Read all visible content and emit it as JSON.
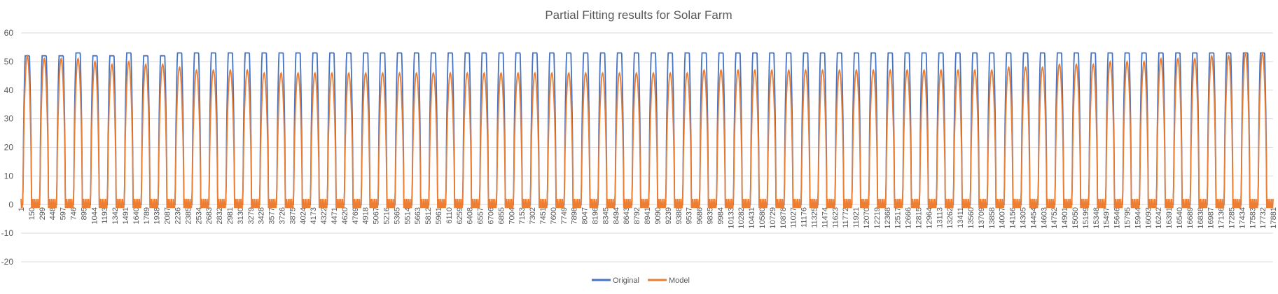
{
  "chart_data": {
    "type": "line",
    "title": "Partial Fitting results for Solar Farm",
    "xlabel": "",
    "ylabel": "",
    "ylim": [
      -20,
      60
    ],
    "yticks": [
      -20,
      -10,
      0,
      10,
      20,
      30,
      40,
      50,
      60
    ],
    "x_range": [
      1,
      17880
    ],
    "grid": true,
    "legend_position": "bottom",
    "x_tick_labels": [
      "1",
      "150",
      "299",
      "448",
      "597",
      "746",
      "895",
      "1044",
      "1193",
      "1342",
      "1491",
      "1640",
      "1789",
      "1938",
      "2087",
      "2236",
      "2385",
      "2534",
      "2683",
      "2832",
      "2981",
      "3130",
      "3279",
      "3428",
      "3577",
      "3726",
      "3875",
      "4024",
      "4173",
      "4322",
      "4471",
      "4620",
      "4769",
      "4918",
      "5067",
      "5216",
      "5365",
      "5514",
      "5663",
      "5812",
      "5961",
      "6110",
      "6259",
      "6408",
      "6557",
      "6706",
      "6855",
      "7004",
      "7153",
      "7302",
      "7451",
      "7600",
      "7749",
      "7898",
      "8047",
      "8196",
      "8345",
      "8494",
      "8643",
      "8792",
      "8941",
      "9090",
      "9239",
      "9388",
      "9537",
      "9686",
      "9835",
      "9984",
      "10133",
      "10282",
      "10431",
      "10580",
      "10729",
      "10878",
      "11027",
      "11176",
      "11325",
      "11474",
      "11623",
      "11772",
      "11921",
      "12070",
      "12219",
      "12368",
      "12517",
      "12666",
      "12815",
      "12964",
      "13113",
      "13262",
      "13411",
      "13560",
      "13709",
      "13858",
      "14007",
      "14156",
      "14305",
      "14454",
      "14603",
      "14752",
      "14901",
      "15050",
      "15199",
      "15348",
      "15497",
      "15646",
      "15795",
      "15944",
      "16093",
      "16242",
      "16391",
      "16540",
      "16689",
      "16838",
      "16987",
      "17136",
      "17285",
      "17434",
      "17583",
      "17732",
      "17881"
    ],
    "series": [
      {
        "name": "Original",
        "color": "#4472c4",
        "daily_peaks": [
          52,
          52,
          52,
          53,
          52,
          52,
          53,
          52,
          52,
          53,
          53,
          53,
          53,
          53,
          53,
          53,
          53,
          53,
          53,
          53,
          53,
          53,
          53,
          53,
          53,
          53,
          53,
          53,
          53,
          53,
          53,
          53,
          53,
          53,
          53,
          53,
          53,
          53,
          53,
          53,
          53,
          53,
          53,
          53,
          53,
          53,
          53,
          53,
          53,
          53,
          53,
          53,
          53,
          53,
          53,
          53,
          53,
          53,
          53,
          53,
          53,
          53,
          53,
          53,
          53,
          53,
          53,
          53,
          53,
          53,
          53,
          53,
          53,
          53
        ]
      },
      {
        "name": "Model",
        "color": "#ed7d31",
        "daily_peaks": [
          52,
          51,
          51,
          51,
          50,
          49,
          50,
          49,
          49,
          48,
          47,
          47,
          47,
          47,
          46,
          46,
          46,
          46,
          46,
          46,
          46,
          46,
          46,
          46,
          46,
          46,
          46,
          46,
          46,
          46,
          46,
          46,
          46,
          46,
          46,
          46,
          46,
          46,
          46,
          46,
          47,
          47,
          47,
          47,
          47,
          47,
          47,
          47,
          47,
          47,
          47,
          47,
          47,
          47,
          47,
          47,
          47,
          47,
          48,
          48,
          48,
          49,
          49,
          49,
          50,
          50,
          50,
          51,
          51,
          51,
          52,
          52,
          53,
          53
        ]
      }
    ]
  }
}
